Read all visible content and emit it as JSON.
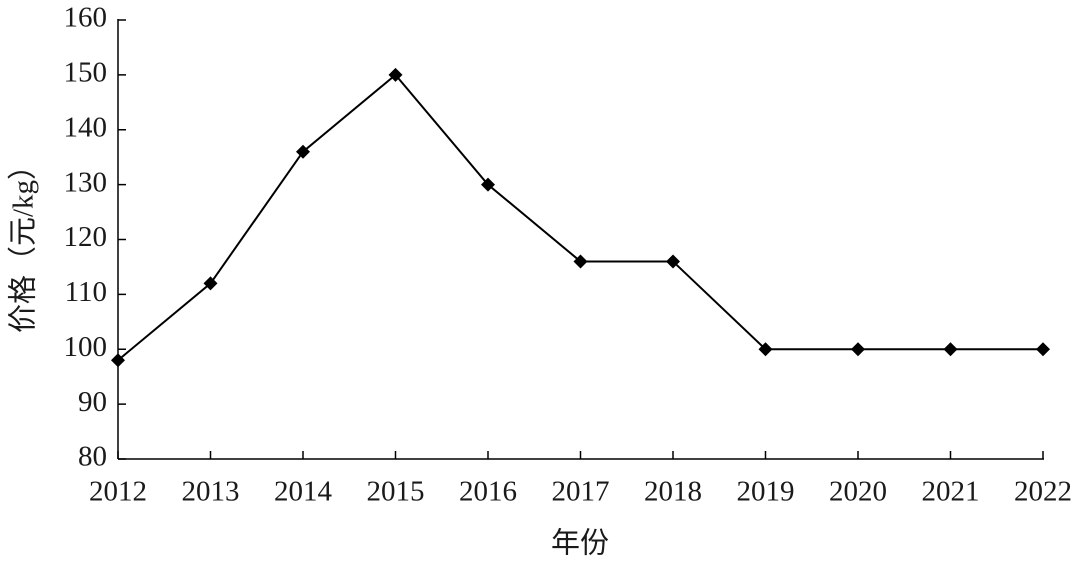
{
  "chart_data": {
    "type": "line",
    "xlabel": "年份",
    "ylabel": "价格（元/kg）",
    "x": [
      2012,
      2013,
      2014,
      2015,
      2016,
      2017,
      2018,
      2019,
      2020,
      2021,
      2022
    ],
    "series": [
      {
        "name": "价格",
        "color": "#000000",
        "values": [
          98,
          112,
          136,
          150,
          130,
          116,
          116,
          100,
          100,
          100,
          100
        ]
      }
    ],
    "xlim": [
      2012,
      2022
    ],
    "xticks": [
      2012,
      2013,
      2014,
      2015,
      2016,
      2017,
      2018,
      2019,
      2020,
      2021,
      2022
    ],
    "ylim": [
      80,
      160
    ],
    "yticks": [
      80,
      90,
      100,
      110,
      120,
      130,
      140,
      150,
      160
    ],
    "marker": "diamond",
    "legend": false
  }
}
